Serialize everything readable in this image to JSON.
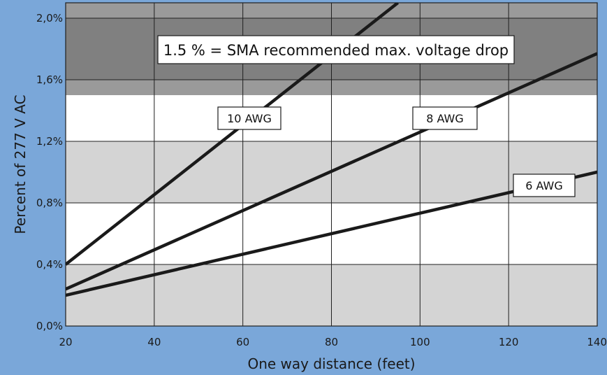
{
  "chart_data": {
    "type": "line",
    "title": "",
    "xlabel": "One way distance (feet)",
    "ylabel": "Percent of 277 V AC",
    "xlim": [
      20,
      140
    ],
    "ylim": [
      0,
      2.1
    ],
    "x_ticks": [
      20,
      40,
      60,
      80,
      100,
      120,
      140
    ],
    "x_tick_labels": [
      "20",
      "40",
      "60",
      "80",
      "100",
      "120",
      "140"
    ],
    "y_ticks": [
      0,
      0.4,
      0.8,
      1.2,
      1.6,
      2.0
    ],
    "y_tick_labels": [
      "0,0%",
      "0,4%",
      "0,8%",
      "1,2%",
      "1,6%",
      "2,0%"
    ],
    "grid": true,
    "shaded_regions": [
      {
        "y": [
          0.0,
          0.4
        ],
        "color": "#d4d4d4"
      },
      {
        "y": [
          0.8,
          1.2
        ],
        "color": "#d4d4d4"
      },
      {
        "y": [
          1.5,
          2.1
        ],
        "color": "#9a9a9a"
      },
      {
        "y": [
          1.6,
          2.0
        ],
        "color": "#808080"
      }
    ],
    "series": [
      {
        "name": "10 AWG",
        "x": [
          20,
          95
        ],
        "y": [
          0.4,
          2.1
        ]
      },
      {
        "name": "8 AWG",
        "x": [
          20,
          140
        ],
        "y": [
          0.24,
          1.77
        ]
      },
      {
        "name": "6 AWG",
        "x": [
          20,
          140
        ],
        "y": [
          0.2,
          1.0
        ]
      }
    ],
    "annotations": [
      {
        "text": "1.5 % = SMA recommended max. voltage drop"
      }
    ],
    "colors": {
      "frame": "#7aa7d9",
      "line": "#1a1a1a",
      "band_light": "#d4d4d4",
      "band_dark": "#9a9a9a",
      "band_darker": "#808080"
    }
  }
}
